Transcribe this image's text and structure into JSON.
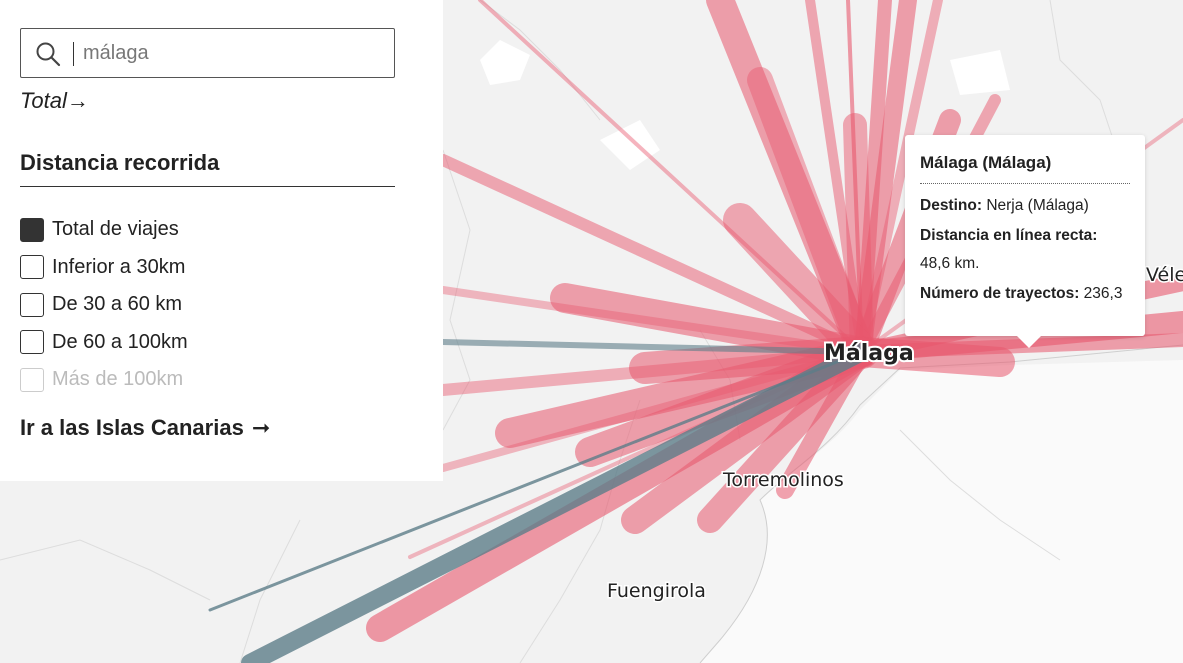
{
  "search": {
    "placeholder": "málaga",
    "value": ""
  },
  "total_link": "Total→",
  "filter": {
    "title": "Distancia recorrida",
    "options": [
      {
        "label": "Total de viajes",
        "checked": true,
        "disabled": false
      },
      {
        "label": "Inferior a 30km",
        "checked": false,
        "disabled": false
      },
      {
        "label": "De 30 a 60 km",
        "checked": false,
        "disabled": false
      },
      {
        "label": "De 60 a 100km",
        "checked": false,
        "disabled": false
      },
      {
        "label": "Más de 100km",
        "checked": false,
        "disabled": true
      }
    ]
  },
  "canarias_link": {
    "label": "Ir a las Islas Canarias",
    "arrow": "➞"
  },
  "map": {
    "places": {
      "origin": "Málaga",
      "torremolinos": "Torremolinos",
      "fuengirola": "Fuengirola",
      "velez": "Vélez"
    },
    "colors": {
      "flow": "#e8586e",
      "flow_selected": "#5d7d88",
      "background": "#f2f2f2"
    }
  },
  "tooltip": {
    "title": "Málaga (Málaga)",
    "destino_label": "Destino:",
    "destino_value": "Nerja (Málaga)",
    "distancia_label": "Distancia en línea recta:",
    "distancia_value": "48,6 km.",
    "trayectos_label": "Número de trayectos:",
    "trayectos_value": "236,3"
  }
}
